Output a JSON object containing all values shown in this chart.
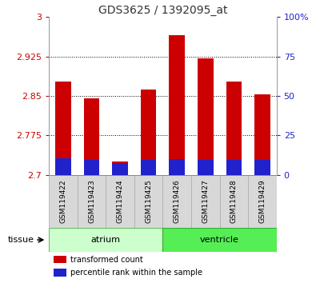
{
  "title": "GDS3625 / 1392095_at",
  "samples": [
    "GSM119422",
    "GSM119423",
    "GSM119424",
    "GSM119425",
    "GSM119426",
    "GSM119427",
    "GSM119428",
    "GSM119429"
  ],
  "red_top": [
    2.878,
    2.845,
    2.725,
    2.862,
    2.965,
    2.922,
    2.878,
    2.853
  ],
  "blue_top": [
    2.732,
    2.728,
    2.722,
    2.728,
    2.73,
    2.728,
    2.728,
    2.728
  ],
  "bar_base": 2.7,
  "ylim_left": [
    2.7,
    3.0
  ],
  "ylim_right": [
    0,
    100
  ],
  "yticks_left": [
    2.7,
    2.775,
    2.85,
    2.925,
    3.0
  ],
  "ytick_labels_left": [
    "2.7",
    "2.775",
    "2.85",
    "2.925",
    "3"
  ],
  "yticks_right": [
    0,
    25,
    50,
    75,
    100
  ],
  "ytick_labels_right": [
    "0",
    "25",
    "50",
    "75",
    "100%"
  ],
  "red_color": "#cc0000",
  "blue_color": "#2222cc",
  "atrium_color": "#ccffcc",
  "ventricle_color": "#55ee55",
  "tissue_label": "tissue",
  "bar_width": 0.55,
  "left_tick_color": "#cc0000",
  "right_tick_color": "#2222cc",
  "background_color": "#ffffff",
  "panel_bg": "#d8d8d8",
  "title_fontsize": 10,
  "tick_fontsize": 8,
  "label_fontsize": 8
}
